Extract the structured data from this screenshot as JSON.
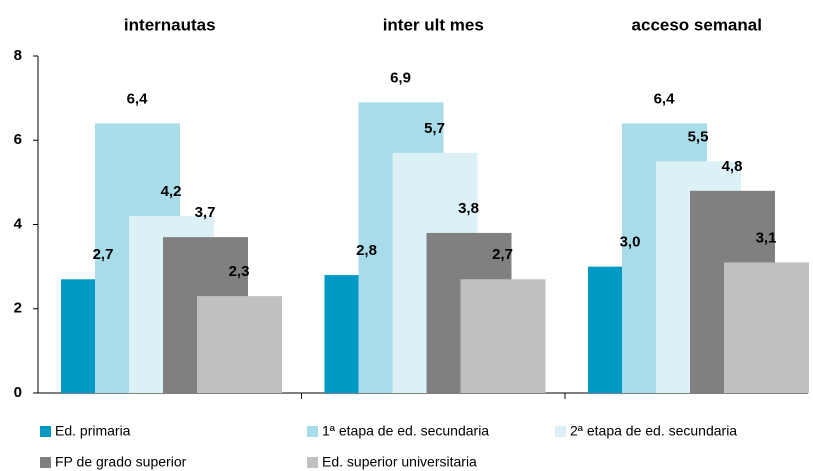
{
  "chart_data": {
    "type": "bar",
    "categories": [
      "internautas",
      "inter ult mes",
      "acceso semanal"
    ],
    "series": [
      {
        "name": "Ed. primaria",
        "color": "#0099c6",
        "values": [
          2.7,
          2.8,
          3.0
        ],
        "value_labels": [
          "2,7",
          "2,8",
          "3,0"
        ]
      },
      {
        "name": "1ª etapa de ed. secundaria",
        "color": "#a8dce8",
        "values": [
          6.4,
          6.9,
          6.4
        ],
        "value_labels": [
          "6,4",
          "6,9",
          "6,4"
        ]
      },
      {
        "name": "2ª etapa de ed. secundaria",
        "color": "#dcf1f6",
        "values": [
          4.2,
          5.7,
          5.5
        ],
        "value_labels": [
          "4,2",
          "5,7",
          "5,5"
        ]
      },
      {
        "name": "FP de grado superior",
        "color": "#808080",
        "values": [
          3.7,
          3.8,
          4.8
        ],
        "value_labels": [
          "3,7",
          "3,8",
          "4,8"
        ]
      },
      {
        "name": "Ed. superior universitaria",
        "color": "#c0c0c0",
        "values": [
          2.3,
          2.7,
          3.1
        ],
        "value_labels": [
          "2,3",
          "2,7",
          "3,1"
        ]
      }
    ],
    "ylim": [
      0,
      8
    ],
    "yticks": [
      0,
      2,
      4,
      6,
      8
    ],
    "grid": false,
    "legend": "bottom"
  }
}
